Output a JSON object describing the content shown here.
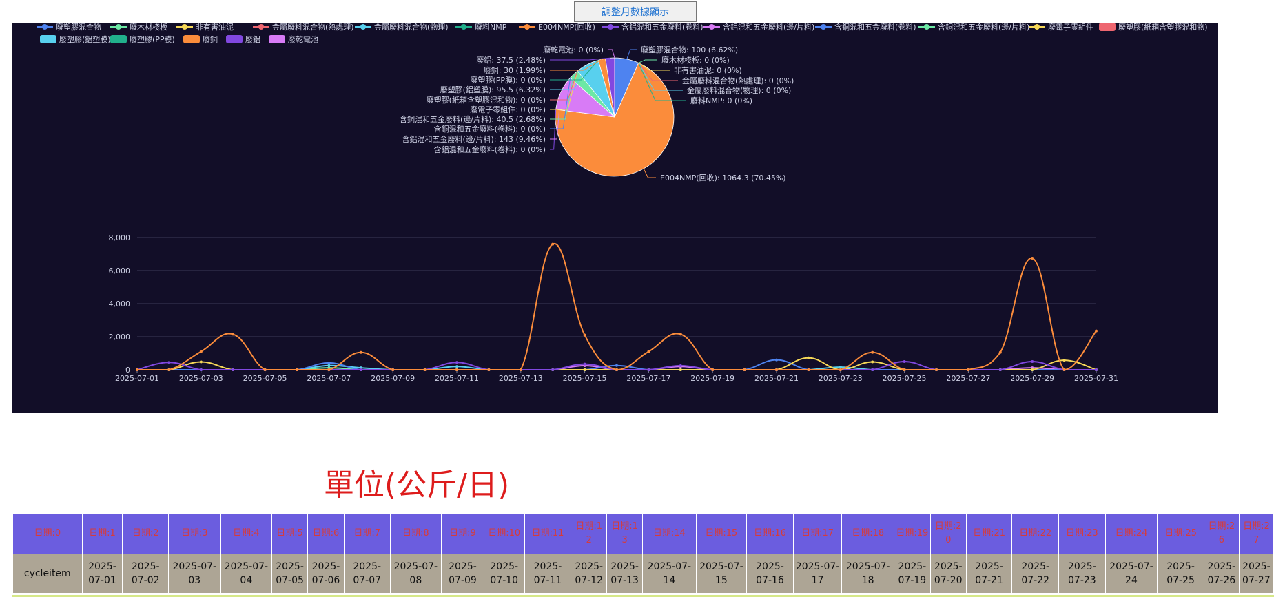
{
  "button": {
    "label": "調整月數據顯示"
  },
  "unit_title": "單位(公斤/日)",
  "legend": [
    {
      "name": "廢塑膠混合物",
      "color": "#4e83f0",
      "shape": "line"
    },
    {
      "name": "廢木材棧板",
      "color": "#6de8a5",
      "shape": "line"
    },
    {
      "name": "非有害油泥",
      "color": "#f6d858",
      "shape": "line"
    },
    {
      "name": "金屬廢料混合物(熱處理)",
      "color": "#ee6670",
      "shape": "line"
    },
    {
      "name": "金屬廢料混合物(物理)",
      "color": "#58d0ee",
      "shape": "line"
    },
    {
      "name": "廢料NMP",
      "color": "#21b08c",
      "shape": "line"
    },
    {
      "name": "E004NMP(回收)",
      "color": "#fb8c3b",
      "shape": "line"
    },
    {
      "name": "含鋁混和五金廢料(卷料)",
      "color": "#8148e0",
      "shape": "line"
    },
    {
      "name": "含鋁混和五金廢料(邊/片料)",
      "color": "#d87bf6",
      "shape": "line"
    },
    {
      "name": "含銅混和五金廢料(卷料)",
      "color": "#4e83f0",
      "shape": "line"
    },
    {
      "name": "含銅混和五金廢料(邊/片料)",
      "color": "#6de8a5",
      "shape": "line"
    },
    {
      "name": "廢電子零組件",
      "color": "#f6d858",
      "shape": "line"
    },
    {
      "name": "廢塑膠(紙箱含塑膠混和物)",
      "color": "#ee6670",
      "shape": "rect"
    },
    {
      "name": "廢塑膠(鋁塑膜)",
      "color": "#58d0ee",
      "shape": "rect"
    },
    {
      "name": "廢塑膠(PP膜)",
      "color": "#21b08c",
      "shape": "rect"
    },
    {
      "name": "廢銅",
      "color": "#fb8c3b",
      "shape": "rect"
    },
    {
      "name": "廢鋁",
      "color": "#8148e0",
      "shape": "rect"
    },
    {
      "name": "廢乾電池",
      "color": "#d87bf6",
      "shape": "rect"
    }
  ],
  "chart_data": [
    {
      "type": "pie",
      "slices": [
        {
          "name": "廢塑膠混合物",
          "value": 100,
          "pct": "6.62%",
          "color": "#4e83f0"
        },
        {
          "name": "廢木材棧板",
          "value": 0,
          "pct": "0%",
          "color": "#6de8a5"
        },
        {
          "name": "非有害油泥",
          "value": 0,
          "pct": "0%",
          "color": "#f6d858"
        },
        {
          "name": "金屬廢料混合物(熱處理)",
          "value": 0,
          "pct": "0%",
          "color": "#ee6670"
        },
        {
          "name": "金屬廢料混合物(物理)",
          "value": 0,
          "pct": "0%",
          "color": "#58d0ee"
        },
        {
          "name": "廢料NMP",
          "value": 0,
          "pct": "0%",
          "color": "#21b08c"
        },
        {
          "name": "E004NMP(回收)",
          "value": 1064.3,
          "pct": "70.45%",
          "color": "#fb8c3b"
        },
        {
          "name": "含鋁混和五金廢料(卷料)",
          "value": 0,
          "pct": "0%",
          "color": "#8148e0"
        },
        {
          "name": "含鋁混和五金廢料(邊/片料)",
          "value": 143,
          "pct": "9.46%",
          "color": "#d87bf6"
        },
        {
          "name": "含銅混和五金廢料(卷料)",
          "value": 0,
          "pct": "0%",
          "color": "#4e83f0"
        },
        {
          "name": "含銅混和五金廢料(邊/片料)",
          "value": 40.5,
          "pct": "2.68%",
          "color": "#6de8a5"
        },
        {
          "name": "廢電子零組件",
          "value": 0,
          "pct": "0%",
          "color": "#f6d858"
        },
        {
          "name": "廢塑膠(紙箱含塑膠混和物)",
          "value": 0,
          "pct": "0%",
          "color": "#ee6670"
        },
        {
          "name": "廢塑膠(鋁塑膜)",
          "value": 95.5,
          "pct": "6.32%",
          "color": "#58d0ee"
        },
        {
          "name": "廢塑膠(PP膜)",
          "value": 0,
          "pct": "0%",
          "color": "#21b08c"
        },
        {
          "name": "廢銅",
          "value": 30,
          "pct": "1.99%",
          "color": "#fb8c3b"
        },
        {
          "name": "廢鋁",
          "value": 37.5,
          "pct": "2.48%",
          "color": "#8148e0"
        },
        {
          "name": "廢乾電池",
          "value": 0,
          "pct": "0%",
          "color": "#d87bf6"
        }
      ]
    },
    {
      "type": "line",
      "smooth": true,
      "ylim": [
        0,
        8000
      ],
      "yticks": [
        "0",
        "2,000",
        "4,000",
        "6,000",
        "8,000"
      ],
      "x": [
        "2025-07-01",
        "2025-07-02",
        "2025-07-03",
        "2025-07-04",
        "2025-07-05",
        "2025-07-06",
        "2025-07-07",
        "2025-07-08",
        "2025-07-09",
        "2025-07-10",
        "2025-07-11",
        "2025-07-12",
        "2025-07-13",
        "2025-07-14",
        "2025-07-15",
        "2025-07-16",
        "2025-07-17",
        "2025-07-18",
        "2025-07-19",
        "2025-07-20",
        "2025-07-21",
        "2025-07-22",
        "2025-07-23",
        "2025-07-24",
        "2025-07-25",
        "2025-07-26",
        "2025-07-27",
        "2025-07-28",
        "2025-07-29",
        "2025-07-30",
        "2025-07-31"
      ],
      "xtick_labels": [
        "2025-07-01",
        "2025-07-03",
        "2025-07-05",
        "2025-07-07",
        "2025-07-09",
        "2025-07-11",
        "2025-07-13",
        "2025-07-15",
        "2025-07-17",
        "2025-07-19",
        "2025-07-21",
        "2025-07-23",
        "2025-07-25",
        "2025-07-27",
        "2025-07-29",
        "2025-07-31"
      ],
      "series": [
        {
          "name": "E004NMP(回收)",
          "color": "#fb8c3b",
          "values": [
            0,
            0,
            1100,
            2150,
            0,
            0,
            0,
            1050,
            0,
            0,
            0,
            0,
            0,
            7600,
            2100,
            0,
            1100,
            2150,
            0,
            0,
            0,
            0,
            0,
            1050,
            0,
            0,
            0,
            1050,
            6750,
            0,
            2350
          ]
        },
        {
          "name": "含鋁混和五金廢料(卷料)",
          "color": "#8148e0",
          "values": [
            0,
            450,
            0,
            0,
            0,
            0,
            0,
            0,
            0,
            0,
            450,
            0,
            0,
            0,
            350,
            0,
            0,
            250,
            0,
            0,
            0,
            0,
            0,
            0,
            500,
            0,
            0,
            0,
            500,
            0,
            0
          ]
        },
        {
          "name": "非有害油泥",
          "color": "#f6d858",
          "values": [
            0,
            0,
            480,
            0,
            0,
            0,
            0,
            0,
            0,
            0,
            0,
            0,
            0,
            0,
            0,
            0,
            0,
            0,
            0,
            0,
            0,
            720,
            0,
            480,
            0,
            0,
            0,
            0,
            0,
            580,
            0
          ]
        },
        {
          "name": "廢塑膠混合物",
          "color": "#4e83f0",
          "values": [
            0,
            0,
            0,
            0,
            0,
            0,
            420,
            0,
            0,
            0,
            0,
            0,
            0,
            0,
            0,
            260,
            0,
            0,
            0,
            0,
            600,
            0,
            0,
            0,
            0,
            0,
            0,
            0,
            0,
            0,
            0
          ]
        },
        {
          "name": "金屬廢料混合物(物理)",
          "color": "#58d0ee",
          "values": [
            0,
            0,
            0,
            0,
            0,
            0,
            260,
            120,
            0,
            0,
            200,
            0,
            0,
            0,
            0,
            0,
            0,
            0,
            0,
            0,
            0,
            0,
            160,
            0,
            0,
            0,
            0,
            0,
            0,
            0,
            0
          ]
        },
        {
          "name": "含鋁混和五金廢料(邊/片料)",
          "color": "#d87bf6",
          "values": [
            0,
            0,
            0,
            0,
            0,
            0,
            0,
            0,
            0,
            0,
            0,
            0,
            0,
            0,
            250,
            0,
            0,
            200,
            0,
            0,
            0,
            0,
            0,
            0,
            0,
            0,
            0,
            0,
            120,
            0,
            0
          ]
        },
        {
          "name": "含銅混和五金廢料(邊/片料)",
          "color": "#6de8a5",
          "values": [
            0,
            0,
            0,
            0,
            0,
            0,
            120,
            0,
            0,
            0,
            0,
            0,
            0,
            0,
            0,
            0,
            0,
            0,
            0,
            0,
            0,
            0,
            0,
            0,
            0,
            0,
            0,
            0,
            0,
            0,
            0
          ]
        }
      ]
    }
  ],
  "table": {
    "headers": [
      "日期:0",
      "日期:1",
      "日期:2",
      "日期:3",
      "日期:4",
      "日期:5",
      "日期:6",
      "日期:7",
      "日期:8",
      "日期:9",
      "日期:10",
      "日期:11",
      "日期:12",
      "日期:13",
      "日期:14",
      "日期:15",
      "日期:16",
      "日期:17",
      "日期:18",
      "日期:19",
      "日期:20",
      "日期:21",
      "日期:22",
      "日期:23",
      "日期:24",
      "日期:25",
      "日期:26",
      "日期:27"
    ],
    "row": [
      "cycleitem",
      "2025-07-01",
      "2025-07-02",
      "2025-07-03",
      "2025-07-04",
      "2025-07-05",
      "2025-07-06",
      "2025-07-07",
      "2025-07-08",
      "2025-07-09",
      "2025-07-10",
      "2025-07-11",
      "2025-07-12",
      "2025-07-13",
      "2025-07-14",
      "2025-07-15",
      "2025-07-16",
      "2025-07-17",
      "2025-07-18",
      "2025-07-19",
      "2025-07-20",
      "2025-07-21",
      "2025-07-22",
      "2025-07-23",
      "2025-07-24",
      "2025-07-25",
      "2025-07-26",
      "2025-07-27"
    ]
  }
}
